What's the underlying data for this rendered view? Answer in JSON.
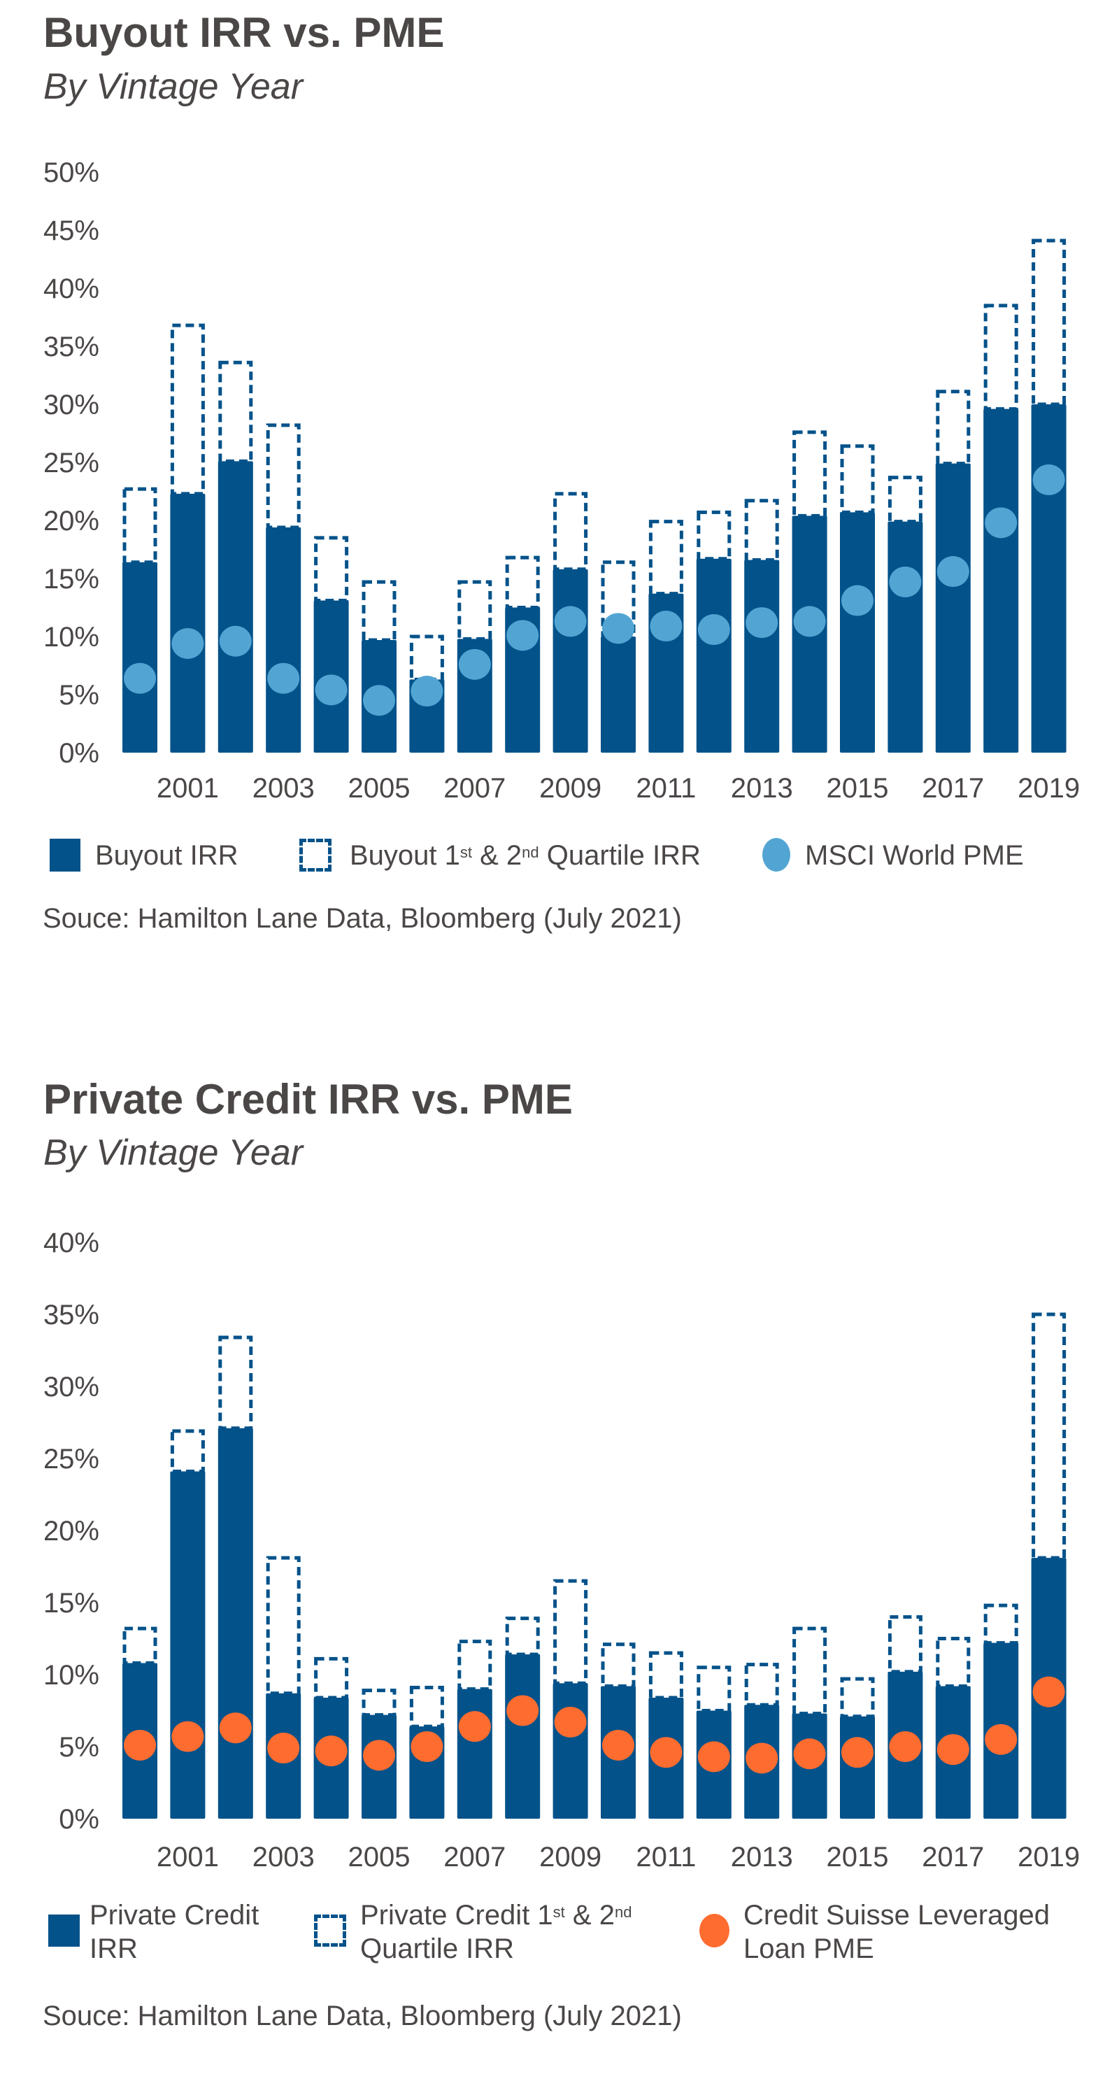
{
  "colors": {
    "irr": "#03528a",
    "quartile": "#03528a",
    "pme_buyout": "#52a5d3",
    "pme_credit": "#ff6c2f",
    "text": "#4a4746"
  },
  "source": "Souce: Hamilton Lane Data, Bloomberg (July 2021)",
  "chart_data": [
    {
      "type": "bar",
      "title": "Buyout IRR vs. PME",
      "subtitle": "By Vintage Year",
      "categories": [
        "2000",
        "2001",
        "2002",
        "2003",
        "2004",
        "2005",
        "2006",
        "2007",
        "2008",
        "2009",
        "2010",
        "2011",
        "2012",
        "2013",
        "2014",
        "2015",
        "2016",
        "2017",
        "2018",
        "2019"
      ],
      "x_tick_labels": [
        "2001",
        "2003",
        "2005",
        "2007",
        "2009",
        "2011",
        "2013",
        "2015",
        "2017",
        "2019"
      ],
      "y_tick_labels": [
        "0%",
        "5%",
        "10%",
        "15%",
        "20%",
        "25%",
        "30%",
        "35%",
        "40%",
        "45%",
        "50%"
      ],
      "ylim": [
        0,
        50
      ],
      "grid": false,
      "legend_placement": "bottom",
      "legend": {
        "irr": "Buyout IRR",
        "quartile": [
          "Buyout 1",
          "st",
          " & 2",
          "nd",
          " Quartile IRR"
        ],
        "pme": "MSCI World PME"
      },
      "series": [
        {
          "name": "Buyout IRR",
          "kind": "bar",
          "values": [
            16.4,
            22.3,
            25.1,
            19.4,
            13.1,
            9.7,
            6.3,
            9.8,
            12.5,
            15.8,
            10.0,
            13.7,
            16.7,
            16.6,
            20.4,
            20.7,
            19.9,
            24.9,
            29.6,
            30.0
          ]
        },
        {
          "name": "Buyout 1st & 2nd Quartile IRR",
          "kind": "dashed-bar",
          "values": [
            22.7,
            36.8,
            33.6,
            28.2,
            18.5,
            14.7,
            10.0,
            14.7,
            16.8,
            22.3,
            16.4,
            19.9,
            20.7,
            21.7,
            27.6,
            26.4,
            23.7,
            31.1,
            38.5,
            44.1
          ]
        },
        {
          "name": "MSCI World PME",
          "kind": "dot",
          "values": [
            6.4,
            9.4,
            9.6,
            6.4,
            5.4,
            4.5,
            5.3,
            7.6,
            10.1,
            11.3,
            10.7,
            10.9,
            10.6,
            11.2,
            11.3,
            13.1,
            14.7,
            15.6,
            19.8,
            23.5
          ]
        }
      ]
    },
    {
      "type": "bar",
      "title": "Private Credit IRR vs. PME",
      "subtitle": "By Vintage Year",
      "categories": [
        "2000",
        "2001",
        "2002",
        "2003",
        "2004",
        "2005",
        "2006",
        "2007",
        "2008",
        "2009",
        "2010",
        "2011",
        "2012",
        "2013",
        "2014",
        "2015",
        "2016",
        "2017",
        "2018",
        "2019"
      ],
      "x_tick_labels": [
        "2001",
        "2003",
        "2005",
        "2007",
        "2009",
        "2011",
        "2013",
        "2015",
        "2017",
        "2019"
      ],
      "y_tick_labels": [
        "0%",
        "5%",
        "10%",
        "15%",
        "20%",
        "25%",
        "30%",
        "35%",
        "40%"
      ],
      "ylim": [
        0,
        40
      ],
      "grid": false,
      "legend_placement": "bottom",
      "legend": {
        "irr": [
          "Private Credit",
          "IRR"
        ],
        "quartile": [
          "Private Credit 1",
          "st",
          " & 2",
          "nd",
          "Quartile IRR"
        ],
        "pme": [
          "Credit Suisse Leveraged",
          "Loan PME"
        ]
      },
      "series": [
        {
          "name": "Private Credit IRR",
          "kind": "bar",
          "values": [
            10.8,
            24.1,
            27.1,
            8.7,
            8.4,
            7.2,
            6.4,
            9.0,
            11.4,
            9.4,
            9.2,
            8.4,
            7.5,
            7.9,
            7.3,
            7.1,
            10.2,
            9.2,
            12.2,
            18.1
          ]
        },
        {
          "name": "Private Credit 1st & 2nd Quartile IRR",
          "kind": "dashed-bar",
          "values": [
            13.2,
            26.9,
            33.4,
            18.1,
            11.1,
            8.9,
            9.1,
            12.3,
            13.9,
            16.5,
            12.1,
            11.5,
            10.5,
            10.7,
            13.2,
            9.7,
            14.0,
            12.5,
            14.8,
            35.0
          ]
        },
        {
          "name": "Credit Suisse Leveraged Loan PME",
          "kind": "dot",
          "values": [
            5.1,
            5.7,
            6.3,
            4.9,
            4.7,
            4.4,
            5.0,
            6.4,
            7.5,
            6.7,
            5.1,
            4.6,
            4.3,
            4.2,
            4.5,
            4.6,
            5.0,
            4.8,
            5.5,
            8.8
          ]
        }
      ]
    }
  ]
}
